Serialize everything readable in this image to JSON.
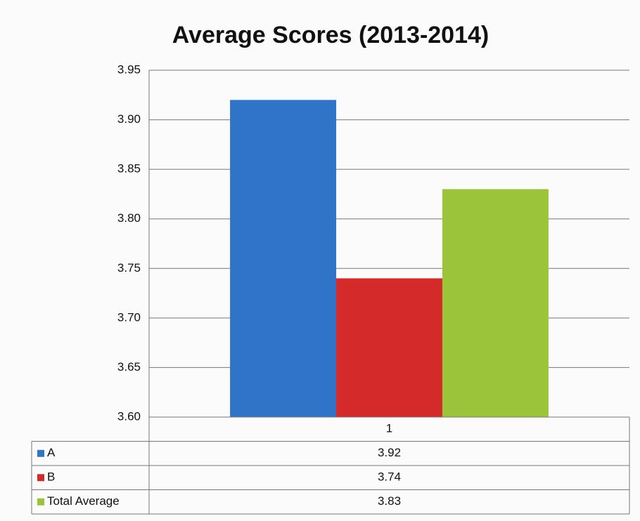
{
  "chart_data": {
    "type": "bar",
    "title": "Average Scores (2013-2014)",
    "categories": [
      "1"
    ],
    "series": [
      {
        "name": "A",
        "color": "#2f74c8",
        "values": [
          3.92
        ]
      },
      {
        "name": "B",
        "color": "#d42a2a",
        "values": [
          3.74
        ]
      },
      {
        "name": "Total Average",
        "color": "#9cc43a",
        "values": [
          3.83
        ]
      }
    ],
    "ylim": [
      3.6,
      3.95
    ],
    "yticks": [
      {
        "value": 3.6,
        "label": "3.60"
      },
      3.65,
      {
        "value": 3.7,
        "label": "3.70"
      },
      3.75,
      {
        "value": 3.8,
        "label": "3.80"
      },
      3.85,
      {
        "value": 3.9,
        "label": "3.90"
      },
      3.95
    ],
    "grid": true,
    "data_table": true
  }
}
